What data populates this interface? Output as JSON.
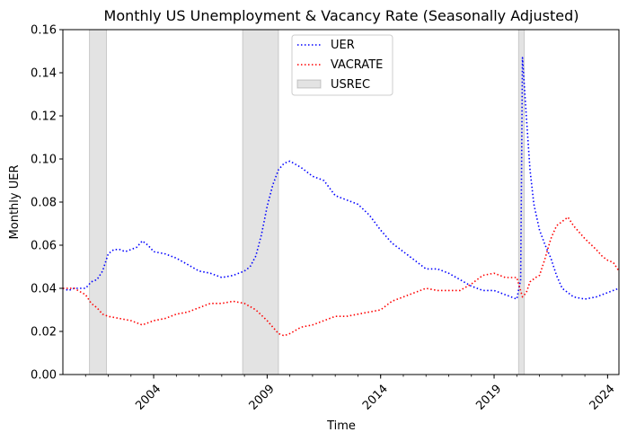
{
  "chart_data": {
    "type": "line",
    "title": "Monthly US Unemployment & Vacancy Rate (Seasonally Adjusted)",
    "xlabel": "Time",
    "ylabel": "Monthly UER",
    "xlim": [
      2000.0,
      2024.5
    ],
    "ylim": [
      0,
      0.16
    ],
    "yticks": [
      "0.00",
      "0.02",
      "0.04",
      "0.06",
      "0.08",
      "0.10",
      "0.12",
      "0.14",
      "0.16"
    ],
    "xticks": [
      "2004",
      "2009",
      "2014",
      "2019",
      "2024"
    ],
    "grid": false,
    "legend_position": "top-center",
    "legend": [
      "UER",
      "VACRATE",
      "USREC"
    ],
    "recessions": [
      {
        "start": 2001.17,
        "end": 2001.92
      },
      {
        "start": 2007.92,
        "end": 2009.5
      },
      {
        "start": 2020.08,
        "end": 2020.33
      }
    ],
    "series": [
      {
        "name": "UER",
        "color": "#0000ff",
        "points": [
          [
            2000.0,
            0.04
          ],
          [
            2000.25,
            0.039
          ],
          [
            2000.5,
            0.04
          ],
          [
            2000.75,
            0.04
          ],
          [
            2001.0,
            0.04
          ],
          [
            2001.25,
            0.043
          ],
          [
            2001.5,
            0.044
          ],
          [
            2001.75,
            0.048
          ],
          [
            2002.0,
            0.056
          ],
          [
            2002.25,
            0.058
          ],
          [
            2002.5,
            0.058
          ],
          [
            2002.75,
            0.057
          ],
          [
            2003.0,
            0.058
          ],
          [
            2003.25,
            0.059
          ],
          [
            2003.5,
            0.062
          ],
          [
            2003.75,
            0.06
          ],
          [
            2004.0,
            0.057
          ],
          [
            2004.5,
            0.056
          ],
          [
            2005.0,
            0.054
          ],
          [
            2005.5,
            0.051
          ],
          [
            2006.0,
            0.048
          ],
          [
            2006.5,
            0.047
          ],
          [
            2007.0,
            0.045
          ],
          [
            2007.5,
            0.046
          ],
          [
            2008.0,
            0.048
          ],
          [
            2008.25,
            0.05
          ],
          [
            2008.5,
            0.055
          ],
          [
            2008.75,
            0.065
          ],
          [
            2009.0,
            0.078
          ],
          [
            2009.25,
            0.088
          ],
          [
            2009.5,
            0.095
          ],
          [
            2009.75,
            0.098
          ],
          [
            2010.0,
            0.099
          ],
          [
            2010.5,
            0.096
          ],
          [
            2011.0,
            0.092
          ],
          [
            2011.5,
            0.09
          ],
          [
            2012.0,
            0.083
          ],
          [
            2012.5,
            0.081
          ],
          [
            2013.0,
            0.079
          ],
          [
            2013.5,
            0.074
          ],
          [
            2014.0,
            0.067
          ],
          [
            2014.5,
            0.061
          ],
          [
            2015.0,
            0.057
          ],
          [
            2015.5,
            0.053
          ],
          [
            2016.0,
            0.049
          ],
          [
            2016.5,
            0.049
          ],
          [
            2017.0,
            0.047
          ],
          [
            2017.5,
            0.044
          ],
          [
            2018.0,
            0.041
          ],
          [
            2018.5,
            0.039
          ],
          [
            2019.0,
            0.039
          ],
          [
            2019.5,
            0.037
          ],
          [
            2020.0,
            0.035
          ],
          [
            2020.17,
            0.044
          ],
          [
            2020.25,
            0.147
          ],
          [
            2020.42,
            0.12
          ],
          [
            2020.58,
            0.095
          ],
          [
            2020.75,
            0.079
          ],
          [
            2021.0,
            0.067
          ],
          [
            2021.25,
            0.06
          ],
          [
            2021.5,
            0.054
          ],
          [
            2021.75,
            0.046
          ],
          [
            2022.0,
            0.04
          ],
          [
            2022.5,
            0.036
          ],
          [
            2023.0,
            0.035
          ],
          [
            2023.5,
            0.036
          ],
          [
            2024.0,
            0.038
          ],
          [
            2024.5,
            0.04
          ]
        ]
      },
      {
        "name": "VACRATE",
        "color": "#ff0000",
        "points": [
          [
            2000.0,
            0.04
          ],
          [
            2000.5,
            0.04
          ],
          [
            2001.0,
            0.037
          ],
          [
            2001.25,
            0.033
          ],
          [
            2001.5,
            0.031
          ],
          [
            2001.75,
            0.028
          ],
          [
            2002.0,
            0.027
          ],
          [
            2002.5,
            0.026
          ],
          [
            2003.0,
            0.025
          ],
          [
            2003.5,
            0.023
          ],
          [
            2004.0,
            0.025
          ],
          [
            2004.5,
            0.026
          ],
          [
            2005.0,
            0.028
          ],
          [
            2005.5,
            0.029
          ],
          [
            2006.0,
            0.031
          ],
          [
            2006.5,
            0.033
          ],
          [
            2007.0,
            0.033
          ],
          [
            2007.5,
            0.034
          ],
          [
            2008.0,
            0.033
          ],
          [
            2008.5,
            0.03
          ],
          [
            2009.0,
            0.025
          ],
          [
            2009.5,
            0.019
          ],
          [
            2009.75,
            0.018
          ],
          [
            2010.0,
            0.019
          ],
          [
            2010.5,
            0.022
          ],
          [
            2011.0,
            0.023
          ],
          [
            2011.5,
            0.025
          ],
          [
            2012.0,
            0.027
          ],
          [
            2012.5,
            0.027
          ],
          [
            2013.0,
            0.028
          ],
          [
            2013.5,
            0.029
          ],
          [
            2014.0,
            0.03
          ],
          [
            2014.5,
            0.034
          ],
          [
            2015.0,
            0.036
          ],
          [
            2015.5,
            0.038
          ],
          [
            2016.0,
            0.04
          ],
          [
            2016.5,
            0.039
          ],
          [
            2017.0,
            0.039
          ],
          [
            2017.5,
            0.039
          ],
          [
            2018.0,
            0.042
          ],
          [
            2018.5,
            0.046
          ],
          [
            2019.0,
            0.047
          ],
          [
            2019.5,
            0.045
          ],
          [
            2020.0,
            0.045
          ],
          [
            2020.25,
            0.036
          ],
          [
            2020.42,
            0.038
          ],
          [
            2020.58,
            0.043
          ],
          [
            2020.83,
            0.045
          ],
          [
            2021.0,
            0.046
          ],
          [
            2021.25,
            0.054
          ],
          [
            2021.5,
            0.063
          ],
          [
            2021.75,
            0.069
          ],
          [
            2022.0,
            0.071
          ],
          [
            2022.25,
            0.073
          ],
          [
            2022.5,
            0.069
          ],
          [
            2022.75,
            0.066
          ],
          [
            2023.0,
            0.063
          ],
          [
            2023.5,
            0.058
          ],
          [
            2023.75,
            0.055
          ],
          [
            2024.0,
            0.053
          ],
          [
            2024.25,
            0.052
          ],
          [
            2024.5,
            0.048
          ]
        ]
      }
    ]
  }
}
